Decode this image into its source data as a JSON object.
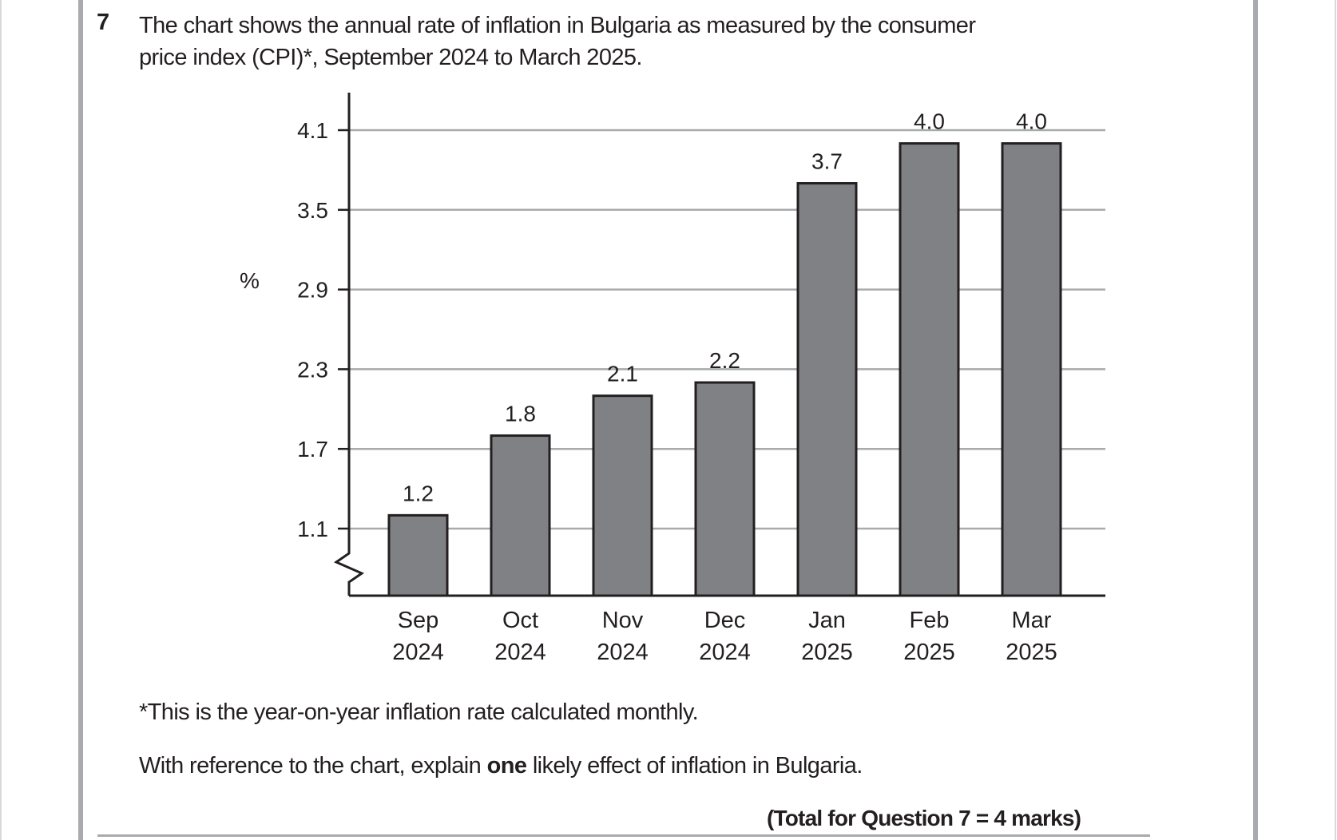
{
  "question": {
    "number": "7",
    "text_line1": "The chart shows the annual rate of inflation in Bulgaria as measured by the consumer",
    "text_line2": "price index (CPI)*, September 2024 to March 2025.",
    "footnote": "*This is the year-on-year inflation rate calculated monthly.",
    "prompt_before": "With reference to the chart, explain ",
    "prompt_bold": "one",
    "prompt_after": " likely effect of inflation in Bulgaria.",
    "total": "(Total for Question 7 = 4 marks)"
  },
  "chart_data": {
    "type": "bar",
    "title": "",
    "xlabel": "",
    "ylabel": "%",
    "categories": [
      {
        "month": "Sep",
        "year": "2024"
      },
      {
        "month": "Oct",
        "year": "2024"
      },
      {
        "month": "Nov",
        "year": "2024"
      },
      {
        "month": "Dec",
        "year": "2024"
      },
      {
        "month": "Jan",
        "year": "2025"
      },
      {
        "month": "Feb",
        "year": "2025"
      },
      {
        "month": "Mar",
        "year": "2025"
      }
    ],
    "values": [
      1.2,
      1.8,
      2.1,
      2.2,
      3.7,
      4.0,
      4.0
    ],
    "data_labels": [
      "1.2",
      "1.8",
      "2.1",
      "2.2",
      "3.7",
      "4.0",
      "4.0"
    ],
    "yticks": [
      1.1,
      1.7,
      2.3,
      2.9,
      3.5,
      4.1
    ],
    "ytick_labels": [
      "1.1",
      "1.7",
      "2.3",
      "2.9",
      "3.5",
      "4.1"
    ],
    "ylim": [
      0.6,
      4.4
    ],
    "axis_break": true,
    "grid": true,
    "legend": "none",
    "colors": {
      "bar_fill": "#808184",
      "bar_stroke": "#231f20",
      "grid": "#a9aaad",
      "axis": "#231f20"
    }
  }
}
